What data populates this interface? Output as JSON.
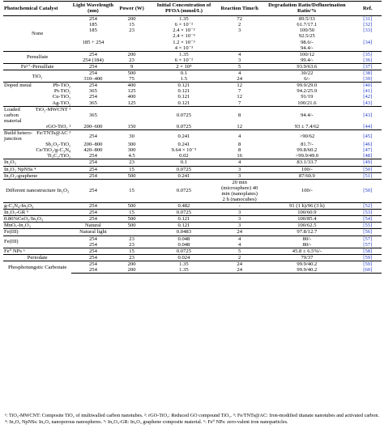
{
  "header": {
    "catalyst": "Photochemical Catalyst",
    "wavelength": "Light Wavelength (nm)",
    "power": "Power (W)",
    "concentration": "Initial Concentration of PFOA (mmol/L)",
    "time": "Reaction Time/h",
    "ratio": "Degradation Ratio/Defluorination Ratio/%",
    "ref": "Ref."
  },
  "groups": [
    {
      "catalyst": "None",
      "align": "center",
      "rows": [
        {
          "wl": "254",
          "pw": "200",
          "conc": "1.35",
          "time": "72",
          "ratio": "89.5/33",
          "ref": "[31]"
        },
        {
          "wl": "185",
          "pw": "15",
          "conc": "6 × 10⁻²",
          "time": "2",
          "ratio": "61.7/17.1",
          "ref": "[32]"
        },
        {
          "wl": "185",
          "pw": "23",
          "conc": "2.4 × 10⁻³",
          "time": "3",
          "ratio": "100/50",
          "ref": "[33]"
        },
        {
          "wl": "",
          "pw": "",
          "conc": "2.4 × 10⁻³",
          "time": "",
          "ratio": "92.5/25",
          "ref": ""
        },
        {
          "wl": "185 + 254",
          "pw": "",
          "conc": "1.2 × 10⁻³",
          "time": "",
          "ratio": "98.6/-",
          "ref": "[34]"
        },
        {
          "wl": "",
          "pw": "",
          "conc": "4 × 10⁻³",
          "time": "",
          "ratio": "94.4/-",
          "ref": ""
        }
      ]
    },
    {
      "catalyst": "Persulfate",
      "align": "center",
      "rows": [
        {
          "wl": "254",
          "pw": "200",
          "conc": "1.35",
          "time": "4",
          "ratio": "100/12",
          "ref": "[35]"
        },
        {
          "wl": "254 (184)",
          "pw": "23",
          "conc": "6 × 10⁻²",
          "time": "3",
          "ratio": "99.4/-",
          "ref": "[36]"
        }
      ]
    },
    {
      "catalyst": "Fe²⁺-Persulfate",
      "align": "center",
      "rows": [
        {
          "wl": "254",
          "pw": "9",
          "conc": "2 × 10⁴",
          "time": "5",
          "ratio": "93.9/63.6",
          "ref": "[37]"
        }
      ]
    },
    {
      "catalyst": "TiO₂",
      "align": "center",
      "rows": [
        {
          "wl": "254",
          "pw": "500",
          "conc": "0.1",
          "time": "4",
          "ratio": "30/22",
          "ref": "[38]"
        },
        {
          "wl": "310–400",
          "pw": "75",
          "conc": "1.5",
          "time": "24",
          "ratio": "6/-",
          "ref": "[39]"
        }
      ]
    },
    {
      "catalyst": "Doped metal",
      "align": "left",
      "rows": [
        {
          "label": "Pb-TiO₂",
          "wl": "254",
          "pw": "400",
          "conc": "0.121",
          "time": "12",
          "ratio": "99.9/29.0",
          "ref": "[40]"
        },
        {
          "label": "Pt-TiO₂",
          "wl": "365",
          "pw": "125",
          "conc": "0.121",
          "time": "7",
          "ratio": "94.2/25.9",
          "ref": "[41]"
        },
        {
          "label": "Cu-TiO₂",
          "wl": "254",
          "pw": "400",
          "conc": "0.121",
          "time": "12",
          "ratio": "91/19",
          "ref": "[42]"
        },
        {
          "label": "Ag-TiO₂",
          "wl": "365",
          "pw": "125",
          "conc": "0.121",
          "time": "7",
          "ratio": "100/21.6",
          "ref": "[43]"
        }
      ]
    },
    {
      "catalyst": "Loaded carbon material",
      "align": "center",
      "rows": [
        {
          "label": "TiO₂-MWCNT ¹",
          "wl": "365",
          "pw": "",
          "conc": "0.0725",
          "time": "8",
          "ratio": "94.4/-",
          "ref": "[43]"
        },
        {
          "label": "rGO-TiO₂ ²",
          "wl": "200–600",
          "pw": "150",
          "conc": "0.0725",
          "time": "12",
          "ratio": "93 ± 7.4/62",
          "ref": "[44]"
        }
      ]
    },
    {
      "catalyst": "Build hetero-junction",
      "align": "center",
      "rows": [
        {
          "label": "Fe/TNTs@AC ³",
          "wl": "254",
          "pw": "30",
          "conc": "0.241",
          "time": "4",
          "ratio": ">90/62",
          "ref": "[45]"
        },
        {
          "label": "Sb₂O₃-TiO₂",
          "wl": "200–800",
          "pw": "300",
          "conc": "0.241",
          "time": "8",
          "ratio": "81.7/-",
          "ref": "[46]"
        },
        {
          "label": "Ce/TiO₂/g-C₃N₄",
          "wl": "420–800",
          "pw": "300",
          "conc": "9.64 × 10⁻³",
          "time": "8",
          "ratio": "99.8/60.2",
          "ref": "[47]"
        },
        {
          "label": "Ti₃C₂/TiO₂",
          "wl": "254",
          "pw": "4.5",
          "conc": "0.02",
          "time": "16",
          "ratio": ">99.9/49.0",
          "ref": "[48]"
        }
      ]
    },
    {
      "catalyst": "In₂O₃",
      "align": "left",
      "rows": [
        {
          "wl": "254",
          "pw": "23",
          "conc": "0.1",
          "time": "4",
          "ratio": "83.1/33.7",
          "ref": "[49]"
        }
      ]
    },
    {
      "catalyst": "In₂O₃ NpNSs ⁴",
      "align": "left",
      "rows": [
        {
          "wl": "254",
          "pw": "15",
          "conc": "0.0725",
          "time": "3",
          "ratio": "100/-",
          "ref": "[50]"
        }
      ]
    },
    {
      "catalyst": "In₂O₃-graphene",
      "align": "left",
      "rows": [
        {
          "wl": "254",
          "pw": "500",
          "conc": "0.241",
          "time": "3",
          "ratio": "87/60.9",
          "ref": "[51]"
        }
      ]
    },
    {
      "catalyst": "Different nanostructure In₂O₃",
      "align": "center",
      "rows": [
        {
          "wl": "254",
          "pw": "15",
          "conc": "0.0725",
          "time": "20 min (microsphere) 40 min (nanoplates) 2 h (nanocubes)",
          "ratio": "100/-",
          "ref": "[50]"
        }
      ]
    },
    {
      "catalyst": "g-C₃N₄-In₂O₃",
      "align": "left",
      "rows": [
        {
          "wl": "254",
          "pw": "500",
          "conc": "0.482",
          "time": "-",
          "ratio": "91 (1 h)/96 (3 h)",
          "ref": "[52]"
        }
      ]
    },
    {
      "catalyst": "In₂O₃-GR ⁵",
      "align": "left",
      "rows": [
        {
          "wl": "254",
          "pw": "15",
          "conc": "0.0725",
          "time": "3",
          "ratio": "100/60.9",
          "ref": "[53]"
        }
      ]
    },
    {
      "catalyst": "0.86%CeO₂/In₂O₃",
      "align": "left",
      "rows": [
        {
          "wl": "254",
          "pw": "500",
          "conc": "0.121",
          "time": "3",
          "ratio": "100/85.4",
          "ref": "[54]"
        }
      ]
    },
    {
      "catalyst": "MnOₓ-In₂O₃",
      "align": "left",
      "rows": [
        {
          "wl": "Natural",
          "pw": "500",
          "conc": "0.121",
          "time": "3",
          "ratio": "100/62.5",
          "ref": "[55]"
        }
      ]
    },
    {
      "catalyst": "Fe(III)",
      "align": "left",
      "rows": [
        {
          "wl": "Natural light",
          "pw": "",
          "conc": "0.0483",
          "time": "24",
          "ratio": "97.8/12.7",
          "ref": "[56]"
        }
      ]
    },
    {
      "catalyst": "Fe(III)",
      "align": "left",
      "rows": [
        {
          "wl": "254",
          "pw": "23",
          "conc": "0.048",
          "time": "4",
          "ratio": "80/-",
          "ref": "[57]"
        },
        {
          "wl": "254",
          "pw": "23",
          "conc": "0.048",
          "time": "4",
          "ratio": "80/-",
          "ref": "[57]"
        }
      ]
    },
    {
      "catalyst": "Fe⁰ NPs ⁶",
      "align": "left",
      "rows": [
        {
          "wl": "254",
          "pw": "15",
          "conc": "0.0725",
          "time": "5",
          "ratio": "45.8 ± 6.5%/-",
          "ref": "[58]"
        }
      ]
    },
    {
      "catalyst": "Periodate",
      "align": "center",
      "rows": [
        {
          "wl": "254",
          "pw": "23",
          "conc": "0.024",
          "time": "2",
          "ratio": "79/37",
          "ref": "[59]"
        }
      ]
    },
    {
      "catalyst": "Phosphotungstic Carbonate",
      "align": "center",
      "rows": [
        {
          "wl": "254",
          "pw": "200",
          "conc": "1.35",
          "time": "24",
          "ratio": "99.9/40.2",
          "ref": "[59]"
        },
        {
          "wl": "254",
          "pw": "200",
          "conc": "1.35",
          "time": "24",
          "ratio": "99.9/40.2",
          "ref": "[60]"
        }
      ]
    }
  ],
  "footnote": "¹: TiO₂-MWCNT: Composite TiO₂ of multiwalled carbon nanotubes. ²: rGO-TiO₂: Reduced GO compound TiO₂. ³: Fe/TNTs@AC: Iron-modified titanate nanotubes and activated carbon. ⁴: In₂O₃ NpNSs: In₂O₃ nanoporous nanospheres. ⁵: In₂O₃-GR: In₂O₃ graphene composite material. ⁶: Fe⁰ NPs: zero-valent iron nanoparticles."
}
